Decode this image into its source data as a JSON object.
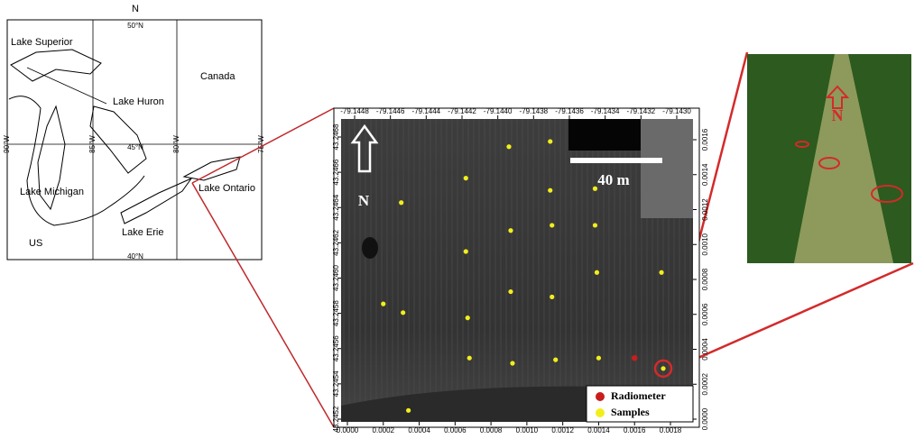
{
  "inset_map": {
    "north": "N",
    "labels": {
      "lake_superior": "Lake Superior",
      "lake_huron": "Lake Huron",
      "canada": "Canada",
      "lake_michigan": "Lake Michigan",
      "lake_ontario": "Lake Ontario",
      "lake_erie": "Lake Erie",
      "us": "US"
    },
    "graticule": [
      "50°N",
      "45°N",
      "40°N",
      "90°W",
      "85°W",
      "80°W",
      "75°W"
    ]
  },
  "study_area": {
    "lon_ticks": [
      -79.1448,
      -79.1446,
      -79.1444,
      -79.1442,
      {
        "value": -79.144,
        "label": "-79.1440"
      },
      -79.1438,
      -79.1436,
      -79.1434,
      -79.1432,
      {
        "value": -79.143,
        "label": "-79.1430"
      }
    ],
    "lat_ticks": [
      43.2468,
      43.2466,
      43.2464,
      43.2462,
      {
        "value": 43.246,
        "label": "43.2460"
      },
      43.2458,
      43.2456,
      43.2454,
      43.2452
    ],
    "xticks": [
      {
        "value": 0,
        "label": "0.0000"
      },
      0.0002,
      0.0004,
      0.0006,
      0.0008,
      {
        "value": 0.001,
        "label": "0.0010"
      },
      0.0012,
      0.0014,
      0.0016,
      0.0018
    ],
    "yticks": [
      {
        "value": 0,
        "label": "0.0000"
      },
      0.0002,
      0.0004,
      0.0006,
      0.0008,
      {
        "value": 0.001,
        "label": "0.0010"
      },
      0.0012,
      0.0014,
      0.0016
    ],
    "samples": {
      "color": "#f2ee1c",
      "x": [
        0.0009,
        0.00113,
        0.00066,
        0.00113,
        0.00138,
        0.0003,
        0.00114,
        0.00138,
        0.00091,
        0.00066,
        0.00139,
        0.00175,
        0.00091,
        0.00114,
        0.0002,
        0.00031,
        0.00067,
        0.00068,
        0.00092,
        0.00116,
        0.0014,
        0.00176,
        0.00034
      ],
      "y": [
        0.00156,
        0.00159,
        0.00138,
        0.00131,
        0.00132,
        0.00124,
        0.00111,
        0.00111,
        0.00108,
        0.00096,
        0.00084,
        0.00084,
        0.00073,
        0.0007,
        0.00066,
        0.00061,
        0.00058,
        0.00035,
        0.00032,
        0.00034,
        0.00035,
        0.00029,
        5e-05
      ]
    },
    "radiometer": {
      "color": "#c81e1e",
      "x": 0.0016,
      "y": 0.00035
    },
    "legend": {
      "radiometer": "Radiometer",
      "samples": "Samples"
    },
    "scale_bar": "40 m",
    "north": "N"
  },
  "photo": {
    "north": "N"
  }
}
